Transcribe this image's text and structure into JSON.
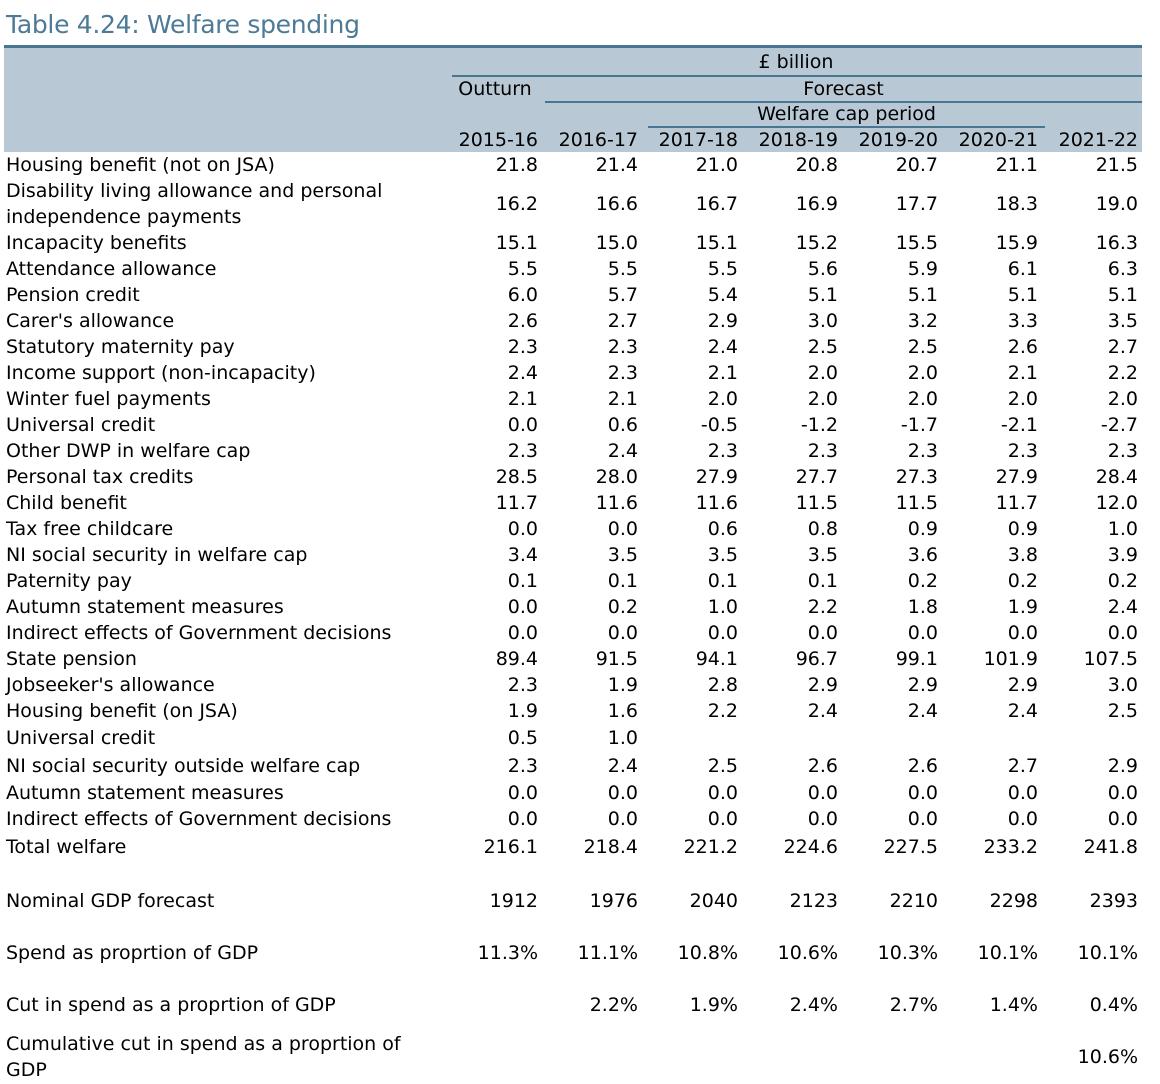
{
  "title": "Table 4.24: Welfare spending",
  "header": {
    "unit": "£ billion",
    "outturn": "Outturn",
    "forecast": "Forecast",
    "cap_period": "Welfare cap period",
    "years": [
      "2015-16",
      "2016-17",
      "2017-18",
      "2018-19",
      "2019-20",
      "2020-21",
      "2021-22"
    ]
  },
  "rows": [
    {
      "label": "Housing benefit (not on JSA)",
      "values": [
        "21.8",
        "21.4",
        "21.0",
        "20.8",
        "20.7",
        "21.1",
        "21.5"
      ]
    },
    {
      "label": "Disability living allowance and personal independence payments",
      "values": [
        "16.2",
        "16.6",
        "16.7",
        "16.9",
        "17.7",
        "18.3",
        "19.0"
      ]
    },
    {
      "label": "Incapacity benefits",
      "values": [
        "15.1",
        "15.0",
        "15.1",
        "15.2",
        "15.5",
        "15.9",
        "16.3"
      ]
    },
    {
      "label": "Attendance allowance",
      "values": [
        "5.5",
        "5.5",
        "5.5",
        "5.6",
        "5.9",
        "6.1",
        "6.3"
      ]
    },
    {
      "label": "Pension credit",
      "values": [
        "6.0",
        "5.7",
        "5.4",
        "5.1",
        "5.1",
        "5.1",
        "5.1"
      ]
    },
    {
      "label": "Carer's allowance",
      "values": [
        "2.6",
        "2.7",
        "2.9",
        "3.0",
        "3.2",
        "3.3",
        "3.5"
      ]
    },
    {
      "label": "Statutory maternity pay",
      "values": [
        "2.3",
        "2.3",
        "2.4",
        "2.5",
        "2.5",
        "2.6",
        "2.7"
      ]
    },
    {
      "label": "Income support (non-incapacity)",
      "values": [
        "2.4",
        "2.3",
        "2.1",
        "2.0",
        "2.0",
        "2.1",
        "2.2"
      ]
    },
    {
      "label": "Winter fuel payments",
      "values": [
        "2.1",
        "2.1",
        "2.0",
        "2.0",
        "2.0",
        "2.0",
        "2.0"
      ]
    },
    {
      "label": "Universal credit",
      "values": [
        "0.0",
        "0.6",
        "-0.5",
        "-1.2",
        "-1.7",
        "-2.1",
        "-2.7"
      ]
    },
    {
      "label": "Other DWP in welfare cap",
      "values": [
        "2.3",
        "2.4",
        "2.3",
        "2.3",
        "2.3",
        "2.3",
        "2.3"
      ]
    },
    {
      "label": "Personal tax credits",
      "values": [
        "28.5",
        "28.0",
        "27.9",
        "27.7",
        "27.3",
        "27.9",
        "28.4"
      ]
    },
    {
      "label": "Child benefit",
      "values": [
        "11.7",
        "11.6",
        "11.6",
        "11.5",
        "11.5",
        "11.7",
        "12.0"
      ]
    },
    {
      "label": "Tax free childcare",
      "values": [
        "0.0",
        "0.0",
        "0.6",
        "0.8",
        "0.9",
        "0.9",
        "1.0"
      ]
    },
    {
      "label": "NI social security in welfare cap",
      "values": [
        "3.4",
        "3.5",
        "3.5",
        "3.5",
        "3.6",
        "3.8",
        "3.9"
      ]
    },
    {
      "label": "Paternity pay",
      "values": [
        "0.1",
        "0.1",
        "0.1",
        "0.1",
        "0.2",
        "0.2",
        "0.2"
      ]
    },
    {
      "label": "Autumn statement measures",
      "values": [
        "0.0",
        "0.2",
        "1.0",
        "2.2",
        "1.8",
        "1.9",
        "2.4"
      ]
    },
    {
      "label": "Indirect effects of Government decisions",
      "values": [
        "0.0",
        "0.0",
        "0.0",
        "0.0",
        "0.0",
        "0.0",
        "0.0"
      ]
    },
    {
      "label": "State pension",
      "values": [
        "89.4",
        "91.5",
        "94.1",
        "96.7",
        "99.1",
        "101.9",
        "107.5"
      ]
    },
    {
      "label": "Jobseeker's allowance",
      "values": [
        "2.3",
        "1.9",
        "2.8",
        "2.9",
        "2.9",
        "2.9",
        "3.0"
      ]
    },
    {
      "label": "Housing benefit (on JSA)",
      "values": [
        "1.9",
        "1.6",
        "2.2",
        "2.4",
        "2.4",
        "2.4",
        "2.5"
      ]
    },
    {
      "label": "Universal credit",
      "values": [
        "0.5",
        "1.0",
        "",
        "",
        "",
        "",
        ""
      ]
    },
    {
      "label": "NI social security outside welfare cap",
      "values": [
        "2.3",
        "2.4",
        "2.5",
        "2.6",
        "2.6",
        "2.7",
        "2.9"
      ]
    },
    {
      "label": "Autumn statement measures",
      "values": [
        "0.0",
        "0.0",
        "0.0",
        "0.0",
        "0.0",
        "0.0",
        "0.0"
      ]
    },
    {
      "label": "Indirect effects of Government decisions",
      "values": [
        "0.0",
        "0.0",
        "0.0",
        "0.0",
        "0.0",
        "0.0",
        "0.0"
      ]
    },
    {
      "label": "Total welfare",
      "values": [
        "216.1",
        "218.4",
        "221.2",
        "224.6",
        "227.5",
        "233.2",
        "241.8"
      ]
    },
    {
      "label": "Nominal GDP forecast",
      "values": [
        "1912",
        "1976",
        "2040",
        "2123",
        "2210",
        "2298",
        "2393"
      ]
    },
    {
      "label": "Spend as proprtion of GDP",
      "values": [
        "11.3%",
        "11.1%",
        "10.8%",
        "10.6%",
        "10.3%",
        "10.1%",
        "10.1%"
      ]
    },
    {
      "label": "Cut in spend as a proprtion of GDP",
      "values": [
        "",
        "2.2%",
        "1.9%",
        "2.4%",
        "2.7%",
        "1.4%",
        "0.4%"
      ]
    },
    {
      "label": "Cumulative cut in spend as a proprtion of GDP",
      "values": [
        "",
        "",
        "",
        "",
        "",
        "",
        "10.6%"
      ]
    }
  ]
}
